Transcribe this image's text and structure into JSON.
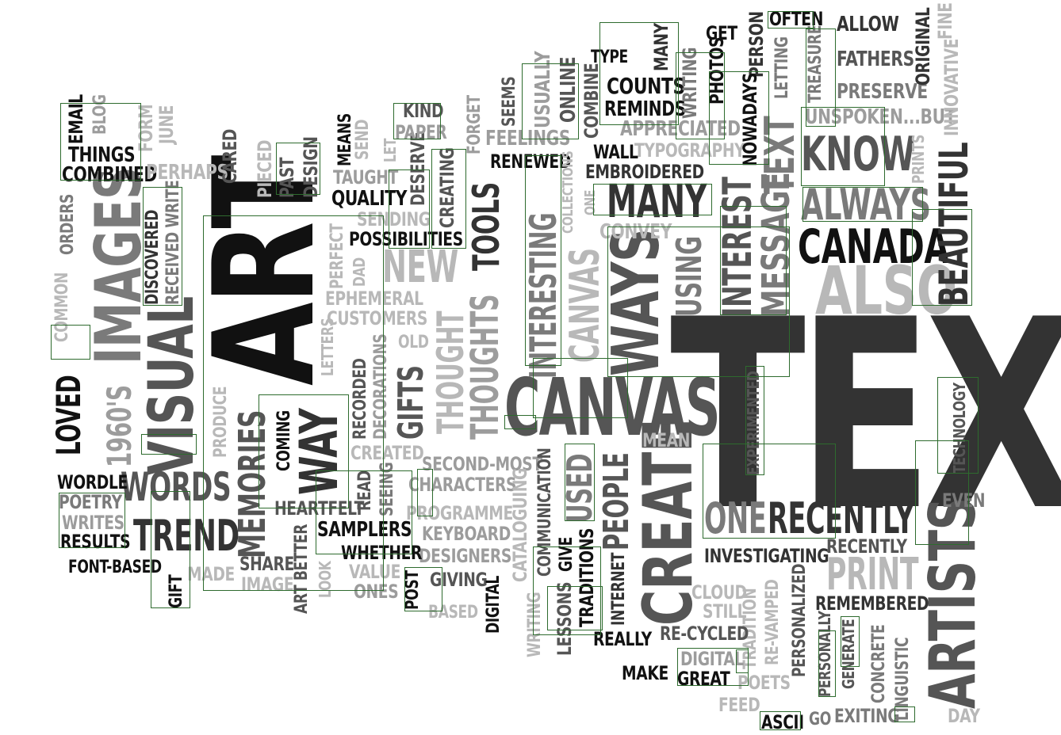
{
  "words": {
    "text": "TEXT",
    "art": "ART",
    "canvas": "CANVAS",
    "images": "IMAGES",
    "visual": "VISUAL",
    "ways": "WAYS",
    "create": "CREATE",
    "also": "ALSO",
    "artists": "ARTISTS",
    "canada": "CANADA",
    "know": "KNOW",
    "always": "ALWAYS",
    "many": "MANY",
    "message": "MESSAGE",
    "text_small": "TEXT",
    "interest": "INTEREST",
    "beautiful": "BEAUTIFUL",
    "one": "ONE",
    "recently": "RECENTLY",
    "recently2": "RECENTLY",
    "print": "PRINT",
    "words": "WORDS",
    "trend": "TREND",
    "memories": "MEMORIES",
    "way": "WAY",
    "people": "PEOPLE",
    "interesting": "INTERESTING",
    "canvas_v": "CANVAS",
    "thoughts": "THOUGHTS",
    "thought": "THOUGHT",
    "tools": "TOOLS",
    "new": "NEW",
    "gifts": "GIFTS",
    "using": "USING",
    "used": "USED",
    "loved": "LOVED",
    "s1960s": "1960'S",
    "things": "THINGS",
    "combined": "COMBINED",
    "email": "EMAIL",
    "blog": "BLOG",
    "form": "FORM",
    "june": "JUNE",
    "perhaps": "PERHAPS",
    "cared": "CARED",
    "pieced": "PIECED",
    "past": "PAST",
    "design": "DESIGN",
    "means": "MEANS",
    "send": "SEND",
    "taught": "TAUGHT",
    "quality": "QUALITY",
    "let": "LET",
    "deserve": "DESERVE",
    "creating": "CREATING",
    "kind": "KIND",
    "paper": "PAPER",
    "forget": "FORGET",
    "seems": "SEEMS",
    "feelings": "FEELINGS",
    "renewed": "RENEWED",
    "usually": "USUALLY",
    "online": "ONLINE",
    "combine": "COMBINE",
    "type": "TYPE",
    "counts": "COUNTS",
    "reminds": "REMINDS",
    "appreciated": "APPRECIATED",
    "wall": "WALL",
    "typography": "TYPOGRAPHY",
    "embroidered": "EMBROIDERED",
    "writing": "WRITING",
    "photos": "PHOTOS",
    "get": "GET",
    "person": "PERSON",
    "nowadays": "NOWADAYS",
    "often": "OFTEN",
    "letting": "LETTING",
    "treasure": "TREASURE",
    "allow": "ALLOW",
    "fathers": "FATHERS",
    "preserve": "PRESERVE",
    "unspoken": "UNSPOKEN...BUT",
    "original": "ORIGINAL",
    "fine": "FINE",
    "innovative": "INNOVATIVE",
    "prints": "PRINTS",
    "collections": "COLLECTIONS",
    "one_small": "ONE",
    "convey": "CONVEY",
    "orders": "ORDERS",
    "discovered": "DISCOVERED",
    "received_write": "RECEIVED WRITE",
    "common": "COMMON",
    "sending": "SENDING",
    "possibilities": "POSSIBILITIES",
    "perfect": "PERFECT",
    "dad": "DAD",
    "ephemeral": "EPHEMERAL",
    "customers": "CUSTOMERS",
    "old": "OLD",
    "letters": "LETTERS",
    "recorded": "RECORDED",
    "decorations": "DECORATIONS",
    "produce": "PRODUCE",
    "coming": "COMING",
    "created": "CREATED",
    "second_most": "SECOND-MOST",
    "characters": "CHARACTERS",
    "cataloguing": "CATALOGUING",
    "communication": "COMMUNICATION",
    "programme": "PROGRAMME",
    "keyboard": "KEYBOARD",
    "designers": "DESIGNERS",
    "giving": "GIVING",
    "based": "BASED",
    "digital_v": "DIGITAL",
    "post": "POST",
    "value": "VALUE",
    "ones": "ONES",
    "look": "LOOK",
    "art_better": "ART BETTER",
    "share": "SHARE",
    "image": "IMAGE",
    "made": "MADE",
    "heartfelt": "HEARTFELT",
    "read": "READ",
    "seeing": "SEEING",
    "samplers": "SAMPLERS",
    "whether": "WHETHER",
    "wordle": "WORDLE",
    "poetry": "POETRY",
    "writes": "WRITES",
    "results": "RESULTS",
    "font_based": "FONT-BASED",
    "gift": "GIFT",
    "mean": "MEAN",
    "experimented": "EXPERIMENTED",
    "technology": "TECHNOLOGY",
    "even": "EVEN",
    "investigating": "INVESTIGATING",
    "give": "GIVE",
    "traditions": "TRADITIONS",
    "lessons": "LESSONS",
    "writing_v": "WRITING",
    "internet": "INTERNET",
    "really": "REALLY",
    "cloud": "CLOUD",
    "still": "STILL",
    "tradition": "TRADITION",
    "re_vamped": "RE-VAMPED",
    "re_cycled": "RE-CYCLED",
    "personalized": "PERSONALIZED",
    "remembered": "REMEMBERED",
    "personally": "PERSONALLY",
    "generate": "GENERATE",
    "concrete": "CONCRETE",
    "linguistic": "LINGUISTIC",
    "digital": "DIGITAL",
    "great": "GREAT",
    "make": "MAKE",
    "poets": "POETS",
    "feed": "FEED",
    "ascii": "ASCII",
    "go": "GO",
    "exiting": "EXITING",
    "day": "DAY"
  }
}
